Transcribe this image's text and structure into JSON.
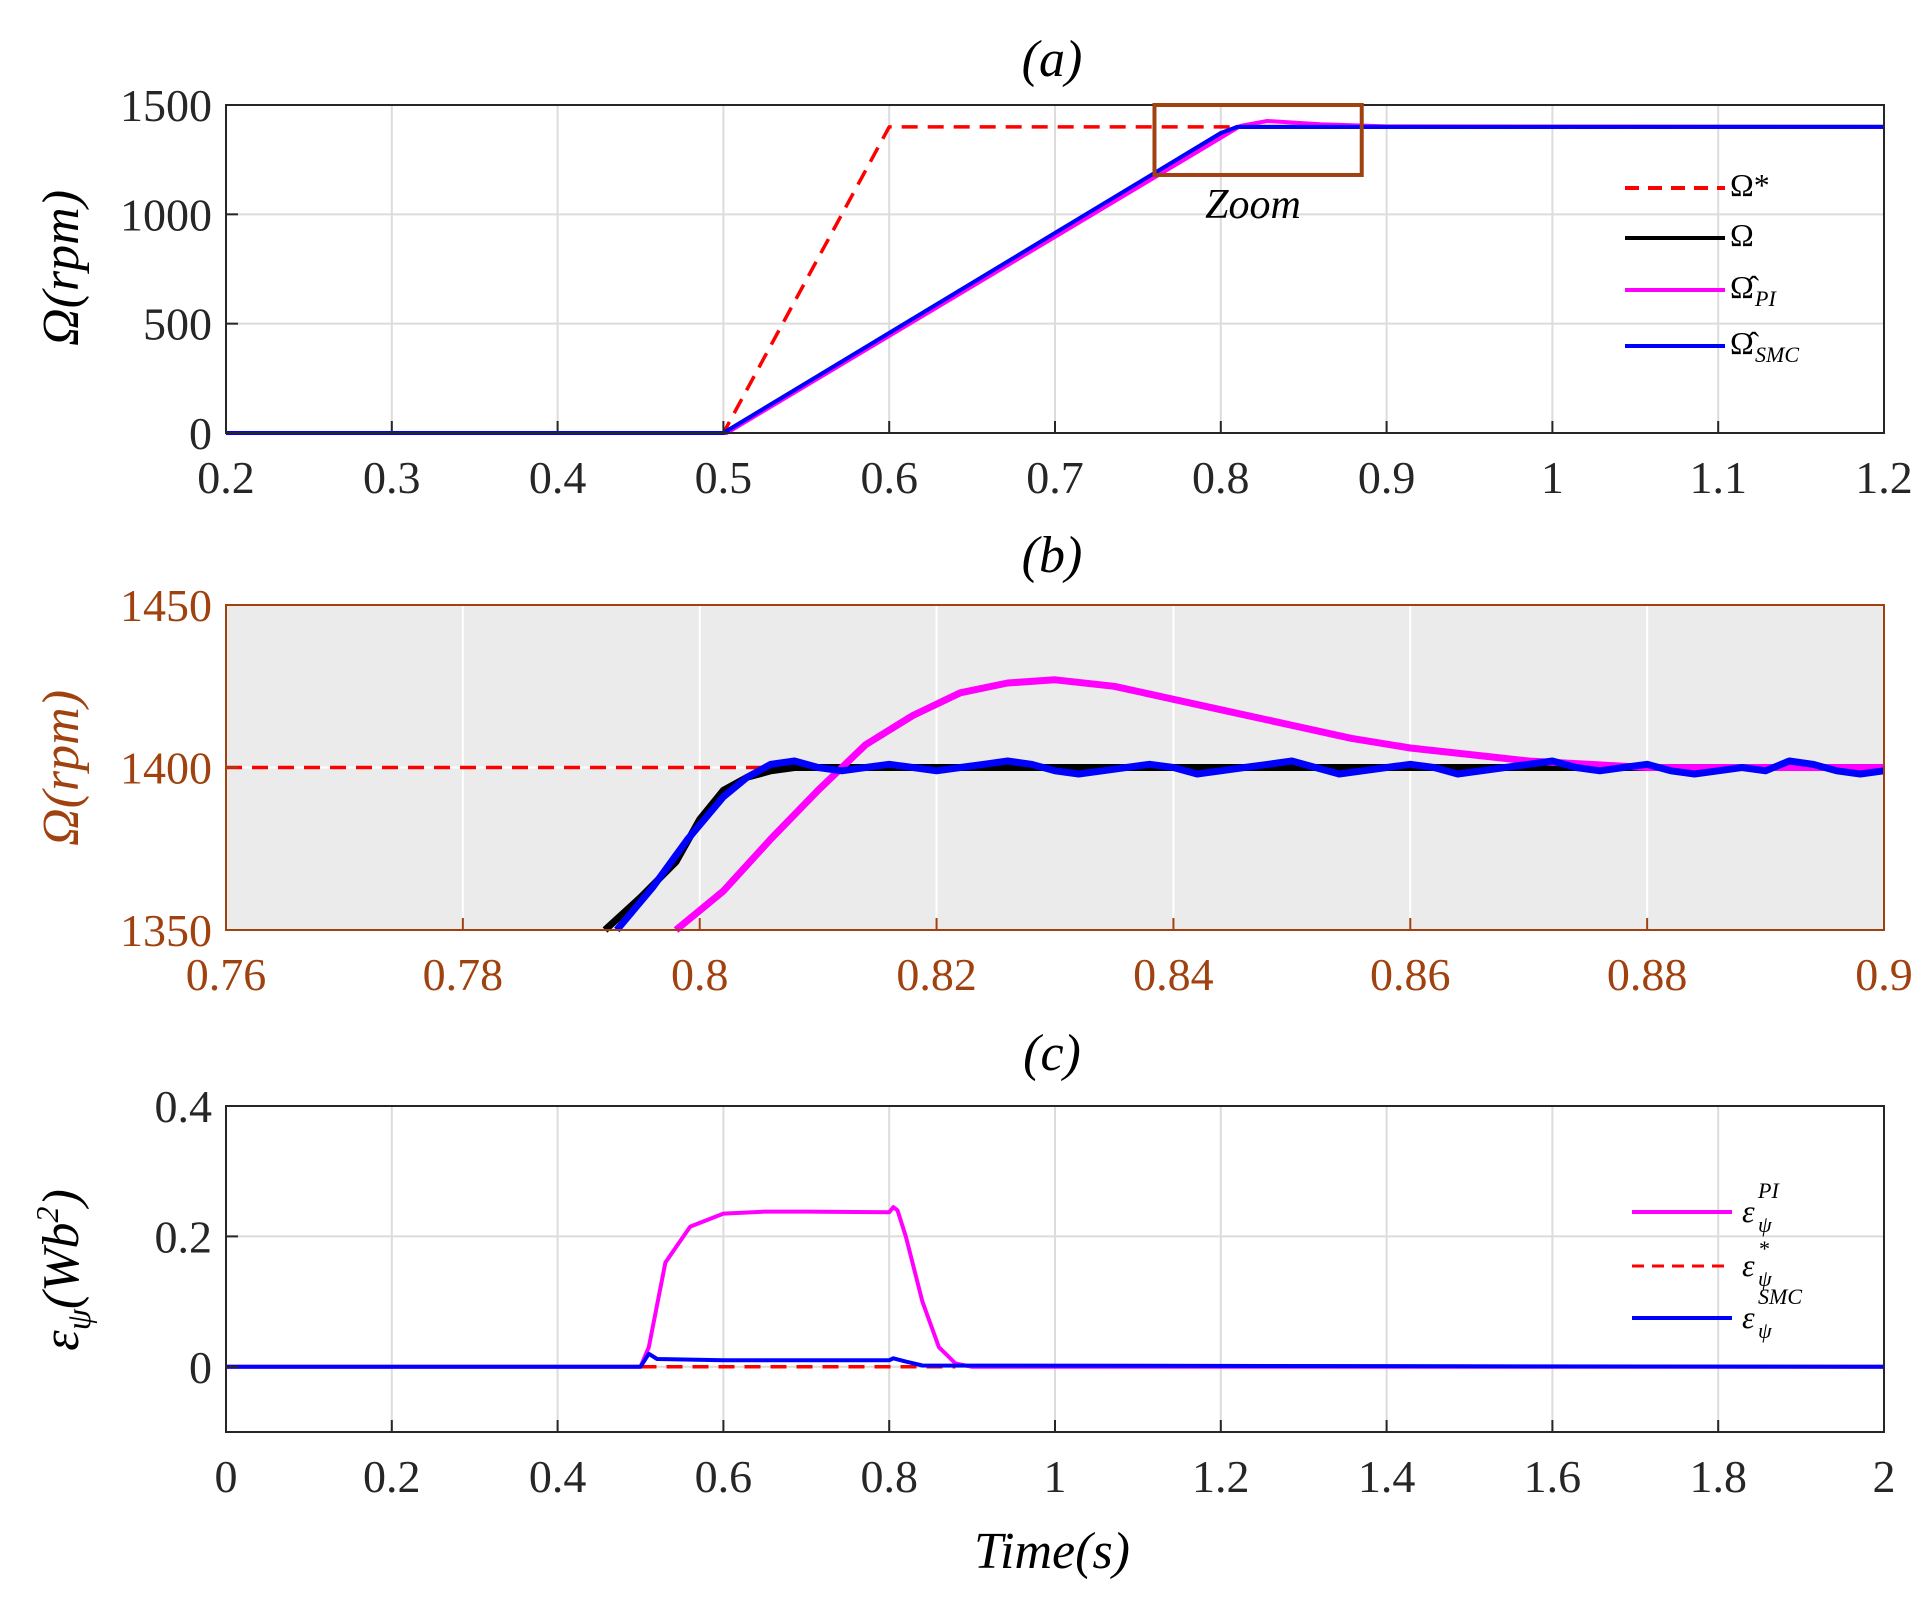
{
  "chart_data": [
    {
      "type": "line",
      "title": "(a)",
      "xlabel": "",
      "ylabel": "Ω(rpm)",
      "xlim": [
        0.2,
        1.2
      ],
      "ylim": [
        0,
        1500
      ],
      "xticks": [
        "0.2",
        "0.3",
        "0.4",
        "0.5",
        "0.6",
        "0.7",
        "0.8",
        "0.9",
        "1",
        "1.1",
        "1.2"
      ],
      "yticks": [
        "0",
        "500",
        "1000",
        "1500"
      ],
      "grid": true,
      "legend_position": "right",
      "annotation": "Zoom",
      "zoom_box": {
        "x": [
          0.76,
          0.885
        ],
        "y": [
          1180,
          1500
        ]
      },
      "colors": {
        "reference": "#ff0000",
        "actual": "#000000",
        "pi": "#ff00ff",
        "smc": "#0000ff",
        "zoom_box": "#a0420f"
      },
      "series": [
        {
          "name": "Ω*",
          "style": "dashed",
          "color": "#ff0000",
          "x": [
            0.2,
            0.5,
            0.6,
            1.2
          ],
          "y": [
            0,
            0,
            1400,
            1400
          ]
        },
        {
          "name": "Ω",
          "style": "solid",
          "color": "#000000",
          "x": [
            0.2,
            0.5,
            0.8,
            0.81,
            1.2
          ],
          "y": [
            0,
            0,
            1370,
            1400,
            1400
          ]
        },
        {
          "name": "Ω̂_PI",
          "style": "solid",
          "color": "#ff00ff",
          "x": [
            0.2,
            0.502,
            0.8,
            0.812,
            0.828,
            0.86,
            0.9,
            1.2
          ],
          "y": [
            0,
            0,
            1350,
            1405,
            1427,
            1412,
            1402,
            1400
          ]
        },
        {
          "name": "Ω̂_SMC",
          "style": "solid",
          "color": "#0000ff",
          "x": [
            0.2,
            0.5,
            0.8,
            0.81,
            1.2
          ],
          "y": [
            0,
            0,
            1372,
            1400,
            1400
          ]
        }
      ]
    },
    {
      "type": "line",
      "title": "(b)",
      "xlabel": "",
      "ylabel": "Ω(rpm)",
      "xlim": [
        0.76,
        0.9
      ],
      "ylim": [
        1350,
        1450
      ],
      "xticks": [
        "0.76",
        "0.78",
        "0.8",
        "0.82",
        "0.84",
        "0.86",
        "0.88",
        "0.9"
      ],
      "yticks": [
        "1350",
        "1400",
        "1450"
      ],
      "grid": true,
      "background": "#ebebeb",
      "axis_color": "#a0420f",
      "series": [
        {
          "name": "Ω*",
          "style": "dashed",
          "color": "#ff0000",
          "x": [
            0.76,
            0.9
          ],
          "y": [
            1400,
            1400
          ]
        },
        {
          "name": "Ω",
          "style": "solid",
          "color": "#000000",
          "x": [
            0.792,
            0.795,
            0.798,
            0.8,
            0.802,
            0.804,
            0.806,
            0.808,
            0.81,
            0.9
          ],
          "y": [
            1350,
            1360,
            1371,
            1384,
            1393,
            1397,
            1399,
            1400,
            1400,
            1400
          ]
        },
        {
          "name": "Ω̂_PI",
          "style": "solid",
          "color": "#ff00ff",
          "x": [
            0.798,
            0.802,
            0.806,
            0.81,
            0.814,
            0.818,
            0.822,
            0.826,
            0.83,
            0.835,
            0.84,
            0.845,
            0.85,
            0.855,
            0.86,
            0.865,
            0.87,
            0.875,
            0.88,
            0.885,
            0.89,
            0.895,
            0.9
          ],
          "y": [
            1350,
            1362,
            1378,
            1393,
            1407,
            1416,
            1423,
            1426,
            1427,
            1425,
            1421,
            1417,
            1413,
            1409,
            1406,
            1404,
            1402,
            1401,
            1400,
            1400,
            1400,
            1400,
            1400
          ]
        },
        {
          "name": "Ω̂_SMC",
          "style": "solid",
          "color": "#0000ff",
          "x": [
            0.793,
            0.796,
            0.799,
            0.802,
            0.804,
            0.806,
            0.808,
            0.81,
            0.812,
            0.814,
            0.816,
            0.818,
            0.82,
            0.822,
            0.824,
            0.826,
            0.828,
            0.83,
            0.832,
            0.834,
            0.836,
            0.838,
            0.84,
            0.842,
            0.844,
            0.846,
            0.848,
            0.85,
            0.852,
            0.854,
            0.856,
            0.858,
            0.86,
            0.862,
            0.864,
            0.866,
            0.868,
            0.87,
            0.872,
            0.874,
            0.876,
            0.878,
            0.88,
            0.882,
            0.884,
            0.886,
            0.888,
            0.89,
            0.892,
            0.894,
            0.896,
            0.898,
            0.9
          ],
          "y": [
            1350,
            1363,
            1378,
            1391,
            1397,
            1401,
            1402,
            1400,
            1399,
            1400,
            1401,
            1400,
            1399,
            1400,
            1401,
            1402,
            1401,
            1399,
            1398,
            1399,
            1400,
            1401,
            1400,
            1398,
            1399,
            1400,
            1401,
            1402,
            1400,
            1398,
            1399,
            1400,
            1401,
            1400,
            1398,
            1399,
            1400,
            1401,
            1402,
            1400,
            1399,
            1400,
            1401,
            1399,
            1398,
            1399,
            1400,
            1399,
            1402,
            1401,
            1399,
            1398,
            1399
          ]
        }
      ]
    },
    {
      "type": "line",
      "title": "(c)",
      "xlabel": "Time(s)",
      "ylabel": "εψ(Wb²)",
      "xlim": [
        0,
        2
      ],
      "ylim": [
        -0.1,
        0.4
      ],
      "xticks": [
        "0",
        "0.2",
        "0.4",
        "0.6",
        "0.8",
        "1",
        "1.2",
        "1.4",
        "1.6",
        "1.8",
        "2"
      ],
      "yticks": [
        "0",
        "0.2",
        "0.4"
      ],
      "grid": true,
      "legend_position": "right",
      "series": [
        {
          "name": "εψ^PI",
          "style": "solid",
          "color": "#ff00ff",
          "x": [
            0,
            0.5,
            0.51,
            0.53,
            0.56,
            0.6,
            0.65,
            0.7,
            0.8,
            0.805,
            0.81,
            0.82,
            0.84,
            0.86,
            0.88,
            0.9,
            2
          ],
          "y": [
            0,
            0,
            0.03,
            0.16,
            0.215,
            0.235,
            0.238,
            0.238,
            0.237,
            0.245,
            0.24,
            0.2,
            0.1,
            0.03,
            0.005,
            0,
            0
          ]
        },
        {
          "name": "εψ*",
          "style": "dashed",
          "color": "#ff0000",
          "x": [
            0.5,
            0.88
          ],
          "y": [
            0,
            0
          ]
        },
        {
          "name": "εψ^SMC",
          "style": "solid",
          "color": "#0000ff",
          "x": [
            0,
            0.5,
            0.51,
            0.52,
            0.6,
            0.7,
            0.8,
            0.805,
            0.82,
            0.84,
            2
          ],
          "y": [
            0,
            0,
            0.02,
            0.012,
            0.01,
            0.01,
            0.01,
            0.013,
            0.008,
            0.002,
            0
          ]
        }
      ]
    }
  ],
  "legend_a": {
    "ref": "Ω*",
    "actual": "Ω",
    "pi_main": "Ω̂",
    "pi_sub": "PI",
    "smc_main": "Ω̂",
    "smc_sub": "SMC"
  },
  "legend_c": {
    "pi_main": "ε",
    "pi_sub": "ψ",
    "pi_sup": "PI",
    "ref_main": "ε",
    "ref_sub": "ψ",
    "ref_sup": "*",
    "smc_main": "ε",
    "smc_sub": "ψ",
    "smc_sup": "SMC"
  },
  "labels": {
    "ylabel_a": "Ω(rpm)",
    "ylabel_b": "Ω(rpm)",
    "ylabel_c_main": "ε",
    "ylabel_c_sub": "ψ",
    "ylabel_c_rest": "(Wb",
    "ylabel_c_sup": "2",
    "ylabel_c_close": ")",
    "xlabel_c": "Time(s)",
    "zoom": "Zoom"
  }
}
